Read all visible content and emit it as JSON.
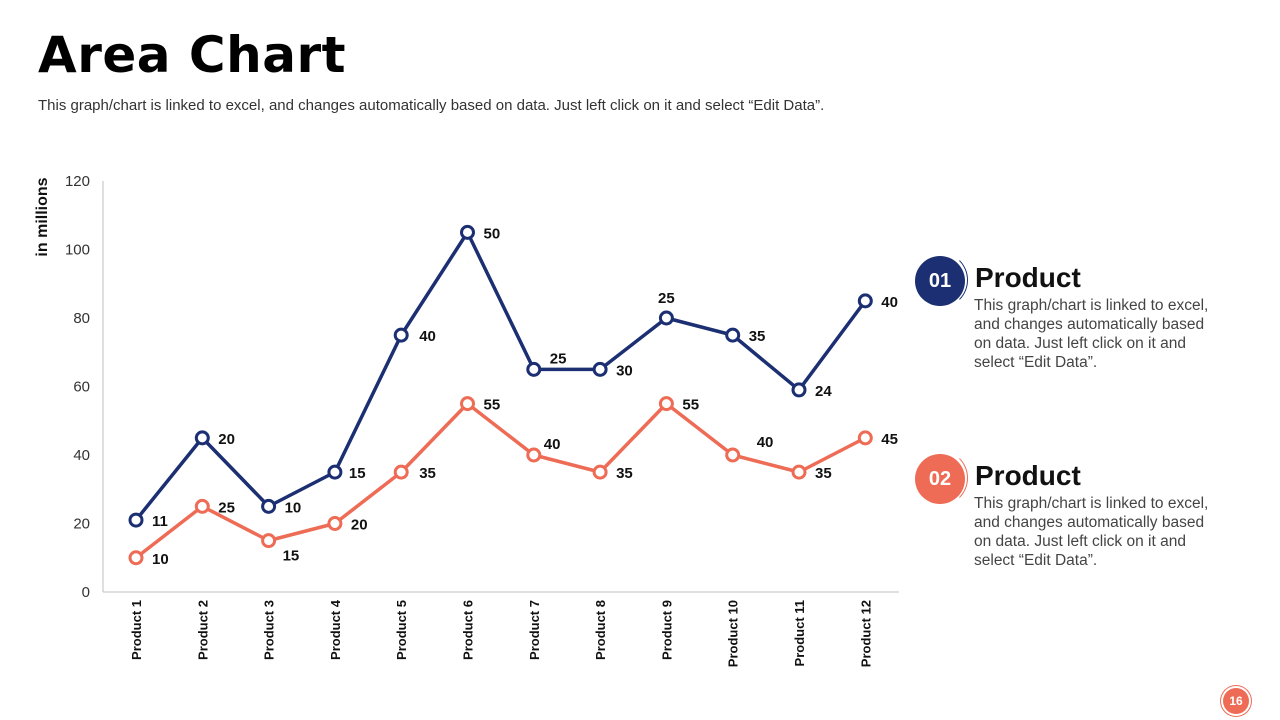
{
  "header": {
    "title": "Area Chart",
    "subtitle": "This graph/chart is linked to excel, and changes automatically based on data. Just left click on it and select “Edit Data”."
  },
  "colors": {
    "series1": "#1b2f72",
    "series2": "#ee6c55"
  },
  "chart_data": {
    "type": "line",
    "title": "",
    "xlabel": "",
    "ylabel": "in millions",
    "ylim": [
      0,
      120
    ],
    "yticks": [
      0,
      20,
      40,
      60,
      80,
      100,
      120
    ],
    "grid": false,
    "categories": [
      "Product 1",
      "Product 2",
      "Product 3",
      "Product 4",
      "Product 5",
      "Product 6",
      "Product 7",
      "Product 8",
      "Product 9",
      "Product 10",
      "Product 11",
      "Product 12"
    ],
    "series": [
      {
        "color": "#1b2f72",
        "values": [
          21,
          45,
          25,
          35,
          75,
          105,
          65,
          65,
          80,
          75,
          59,
          85
        ],
        "labels": [
          "11",
          "20",
          "10",
          "15",
          "40",
          "50",
          "25",
          "30",
          "25",
          "35",
          "24",
          "40"
        ]
      },
      {
        "color": "#ee6c55",
        "values": [
          10,
          25,
          15,
          20,
          35,
          55,
          40,
          35,
          55,
          40,
          35,
          45
        ],
        "labels": [
          "10",
          "25",
          "15",
          "20",
          "35",
          "55",
          "40",
          "35",
          "55",
          "40",
          "35",
          "45"
        ]
      }
    ]
  },
  "legend": [
    {
      "number": "01",
      "title": "Product",
      "description": "This graph/chart is linked to excel, and changes automatically based on data. Just left click on it and select “Edit Data”."
    },
    {
      "number": "02",
      "title": "Product",
      "description": "This graph/chart is linked to excel, and changes automatically based on data. Just left click on it and select “Edit Data”."
    }
  ],
  "footer": {
    "page_number": "16"
  }
}
